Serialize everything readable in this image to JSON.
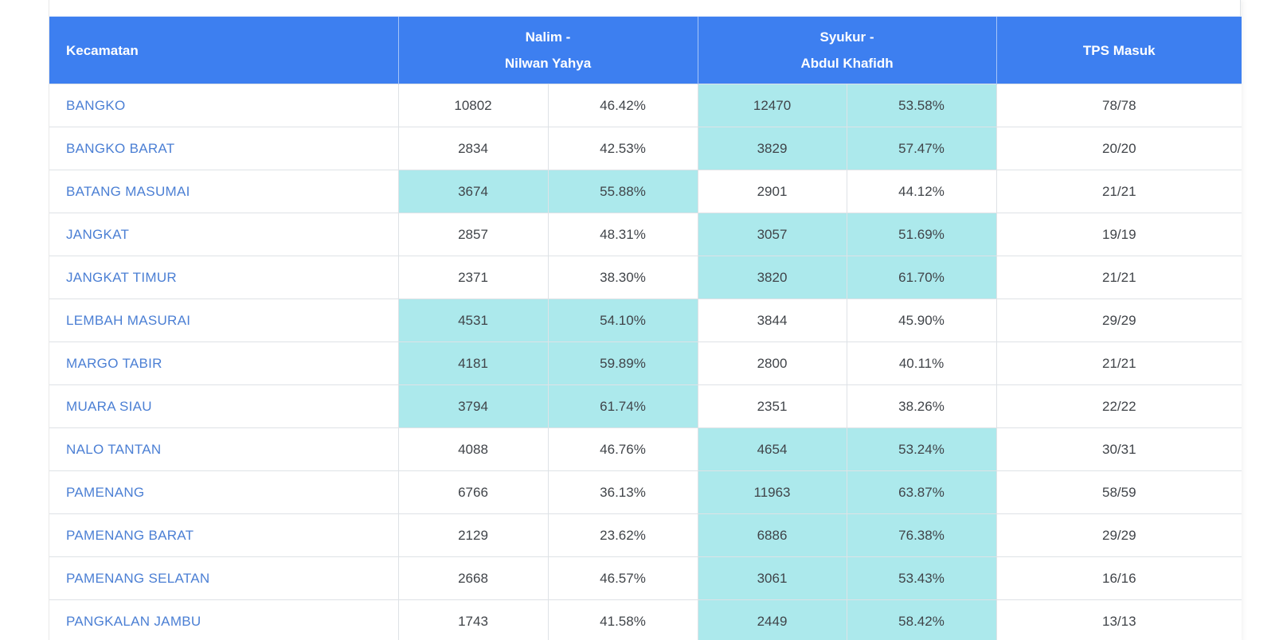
{
  "table": {
    "columns": {
      "kecamatan": "Kecamatan",
      "candidate1_line1": "Nalim -",
      "candidate1_line2": "Nilwan Yahya",
      "candidate2_line1": "Syukur -",
      "candidate2_line2": "Abdul Khafidh",
      "tps": "TPS Masuk"
    },
    "colors": {
      "header_bg": "#3d7ff0",
      "header_text": "#ffffff",
      "highlight": "#ace9ec",
      "link": "#4b7fd4",
      "text": "#404449",
      "border": "#dee2e6"
    },
    "rows": [
      {
        "kecamatan": "BANGKO",
        "nalim_votes": "10802",
        "nalim_pct": "46.42%",
        "syukur_votes": "12470",
        "syukur_pct": "53.58%",
        "tps": "78/78",
        "winner": "syukur"
      },
      {
        "kecamatan": "BANGKO BARAT",
        "nalim_votes": "2834",
        "nalim_pct": "42.53%",
        "syukur_votes": "3829",
        "syukur_pct": "57.47%",
        "tps": "20/20",
        "winner": "syukur"
      },
      {
        "kecamatan": "BATANG MASUMAI",
        "nalim_votes": "3674",
        "nalim_pct": "55.88%",
        "syukur_votes": "2901",
        "syukur_pct": "44.12%",
        "tps": "21/21",
        "winner": "nalim"
      },
      {
        "kecamatan": "JANGKAT",
        "nalim_votes": "2857",
        "nalim_pct": "48.31%",
        "syukur_votes": "3057",
        "syukur_pct": "51.69%",
        "tps": "19/19",
        "winner": "syukur"
      },
      {
        "kecamatan": "JANGKAT TIMUR",
        "nalim_votes": "2371",
        "nalim_pct": "38.30%",
        "syukur_votes": "3820",
        "syukur_pct": "61.70%",
        "tps": "21/21",
        "winner": "syukur"
      },
      {
        "kecamatan": "LEMBAH MASURAI",
        "nalim_votes": "4531",
        "nalim_pct": "54.10%",
        "syukur_votes": "3844",
        "syukur_pct": "45.90%",
        "tps": "29/29",
        "winner": "nalim"
      },
      {
        "kecamatan": "MARGO TABIR",
        "nalim_votes": "4181",
        "nalim_pct": "59.89%",
        "syukur_votes": "2800",
        "syukur_pct": "40.11%",
        "tps": "21/21",
        "winner": "nalim"
      },
      {
        "kecamatan": "MUARA SIAU",
        "nalim_votes": "3794",
        "nalim_pct": "61.74%",
        "syukur_votes": "2351",
        "syukur_pct": "38.26%",
        "tps": "22/22",
        "winner": "nalim"
      },
      {
        "kecamatan": "NALO TANTAN",
        "nalim_votes": "4088",
        "nalim_pct": "46.76%",
        "syukur_votes": "4654",
        "syukur_pct": "53.24%",
        "tps": "30/31",
        "winner": "syukur"
      },
      {
        "kecamatan": "PAMENANG",
        "nalim_votes": "6766",
        "nalim_pct": "36.13%",
        "syukur_votes": "11963",
        "syukur_pct": "63.87%",
        "tps": "58/59",
        "winner": "syukur"
      },
      {
        "kecamatan": "PAMENANG BARAT",
        "nalim_votes": "2129",
        "nalim_pct": "23.62%",
        "syukur_votes": "6886",
        "syukur_pct": "76.38%",
        "tps": "29/29",
        "winner": "syukur"
      },
      {
        "kecamatan": "PAMENANG SELATAN",
        "nalim_votes": "2668",
        "nalim_pct": "46.57%",
        "syukur_votes": "3061",
        "syukur_pct": "53.43%",
        "tps": "16/16",
        "winner": "syukur"
      },
      {
        "kecamatan": "PANGKALAN JAMBU",
        "nalim_votes": "1743",
        "nalim_pct": "41.58%",
        "syukur_votes": "2449",
        "syukur_pct": "58.42%",
        "tps": "13/13",
        "winner": "syukur"
      }
    ]
  }
}
